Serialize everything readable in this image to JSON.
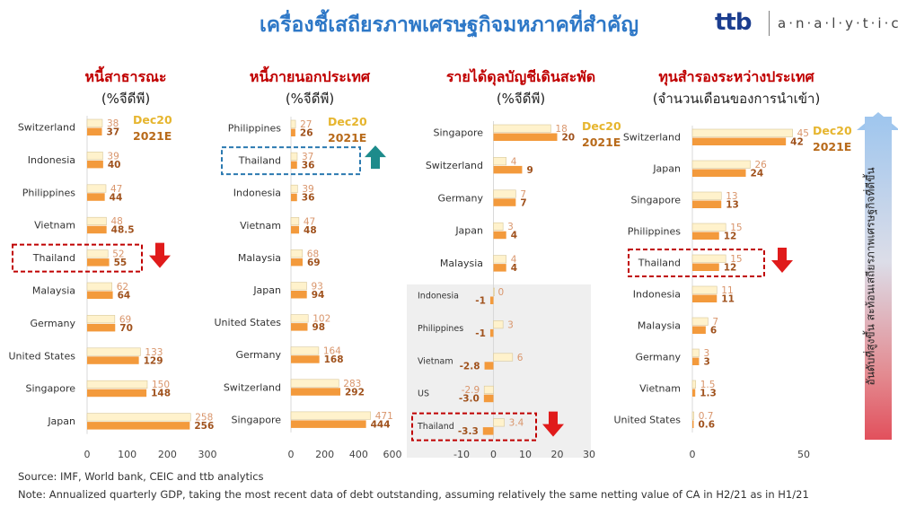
{
  "title": "เครื่องชี้เสถียรภาพเศรษฐกิจมหภาคที่สำคัญ",
  "brand": {
    "mark": "ttb",
    "name": "a·n·a·l·y·t·i·c·s"
  },
  "legend": {
    "first": "Dec20",
    "second": "2021E"
  },
  "colors": {
    "dec20": "#fff2cc",
    "dec20_label": "#d9956b",
    "e2021": "#f39a3c",
    "e2021_label": "#a0521d",
    "title": "#2e78c7",
    "panel_title": "#c00000",
    "legend_first": "#e6b52e",
    "legend_second": "#b86a1a",
    "highlight_red": "#c00000",
    "highlight_blue": "#2b79b0",
    "arrow_red": "#e01b1b",
    "arrow_teal": "#1d8b8b"
  },
  "side_label": "อันดับที่สูงขึ้น สะท้อนเสถียรภาพเศรษฐกิจที่ดีขึ้น",
  "source": "Source: IMF, World bank, CEIC and ttb analytics",
  "note": "Note: Annualized quarterly GDP, taking the most recent data of debt outstanding, assuming relatively the same netting value of CA in H2/21 as in H1/21",
  "chart_data": [
    {
      "type": "bar",
      "title": "หนี้สาธารณะ",
      "subtitle": "(%จีดีพี)",
      "categories": [
        "Switzerland",
        "Indonesia",
        "Philippines",
        "Vietnam",
        "Thailand",
        "Malaysia",
        "Germany",
        "United States",
        "Singapore",
        "Japan"
      ],
      "series": [
        {
          "name": "Dec20",
          "values": [
            38,
            39,
            47,
            48,
            52,
            62,
            69,
            133,
            150,
            258
          ],
          "labels": [
            "38",
            "39",
            "47",
            "48",
            "52",
            "62",
            "69",
            "133",
            "150",
            "258"
          ]
        },
        {
          "name": "2021E",
          "values": [
            37,
            40,
            44,
            48.5,
            55,
            64,
            70,
            129,
            148,
            256
          ],
          "labels": [
            "37",
            "40",
            "44",
            "48.5",
            "55",
            "64",
            "70",
            "129",
            "148",
            "256"
          ]
        }
      ],
      "xlim": [
        0,
        300
      ],
      "ticks": [
        "0",
        "100",
        "200",
        "300"
      ],
      "highlight": "Thailand",
      "arrow": "down"
    },
    {
      "type": "bar",
      "title": "หนี้ภายนอกประเทศ",
      "subtitle": "(%จีดีพี)",
      "categories": [
        "Philippines",
        "Thailand",
        "Indonesia",
        "Vietnam",
        "Malaysia",
        "Japan",
        "United States",
        "Germany",
        "Switzerland",
        "Singapore"
      ],
      "series": [
        {
          "name": "Dec20",
          "values": [
            27,
            37,
            39,
            47,
            68,
            93,
            102,
            164,
            283,
            471
          ],
          "labels": [
            "27",
            "37",
            "39",
            "47",
            "68",
            "93",
            "102",
            "164",
            "283",
            "471"
          ]
        },
        {
          "name": "2021E",
          "values": [
            26,
            36,
            36,
            48,
            69,
            94,
            98,
            168,
            292,
            444
          ],
          "labels": [
            "26",
            "36",
            "36",
            "48",
            "69",
            "94",
            "98",
            "168",
            "292",
            "444"
          ]
        }
      ],
      "xlim": [
        0,
        600
      ],
      "ticks": [
        "0",
        "200",
        "400",
        "600"
      ],
      "highlight": "Thailand",
      "arrow": "up"
    },
    {
      "type": "bar",
      "title": "รายได้ดุลบัญชีเดินสะพัด",
      "subtitle": "(%จีดีพี)",
      "categories": [
        "Singapore",
        "Switzerland",
        "Germany",
        "Japan",
        "Malaysia",
        "Indonesia",
        "Philippines",
        "Vietnam",
        "US",
        "Thailand"
      ],
      "series": [
        {
          "name": "Dec20",
          "values": [
            18,
            4,
            7,
            3,
            4,
            0,
            3,
            6,
            -2.9,
            3.4
          ],
          "labels": [
            "18",
            "4",
            "7",
            "3",
            "4",
            "0",
            "3",
            "6",
            "-2.9",
            "3.4"
          ]
        },
        {
          "name": "2021E",
          "values": [
            20,
            9,
            7,
            4,
            4,
            -1,
            -1,
            -2.8,
            -3.0,
            -3.3
          ],
          "labels": [
            "20",
            "9",
            "7",
            "4",
            "4",
            "-1",
            "-1",
            "-2.8",
            "-3.0",
            "-3.3"
          ]
        }
      ],
      "xlim": [
        -10,
        30
      ],
      "ticks": [
        "-10",
        "0",
        "10",
        "20",
        "30"
      ],
      "highlight": "Thailand",
      "arrow": "down"
    },
    {
      "type": "bar",
      "title": "ทุนสำรองระหว่างประเทศ",
      "subtitle": "(จำนวนเดือนของการนำเข้า)",
      "categories": [
        "Switzerland",
        "Japan",
        "Singapore",
        "Philippines",
        "Thailand",
        "Indonesia",
        "Malaysia",
        "Germany",
        "Vietnam",
        "United States"
      ],
      "series": [
        {
          "name": "Dec20",
          "values": [
            45,
            26,
            13,
            15,
            15,
            11,
            7,
            3,
            1.5,
            0.7
          ],
          "labels": [
            "45",
            "26",
            "13",
            "15",
            "15",
            "11",
            "7",
            "3",
            "1.5",
            "0.7"
          ]
        },
        {
          "name": "2021E",
          "values": [
            42,
            24,
            13,
            12,
            12,
            11,
            6,
            3,
            1.3,
            0.6
          ],
          "labels": [
            "42",
            "24",
            "13",
            "12",
            "12",
            "11",
            "6",
            "3",
            "1.3",
            "0.6"
          ]
        }
      ],
      "xlim": [
        0,
        50
      ],
      "ticks": [
        "0",
        "50"
      ],
      "highlight": "Thailand",
      "arrow": "down"
    }
  ]
}
